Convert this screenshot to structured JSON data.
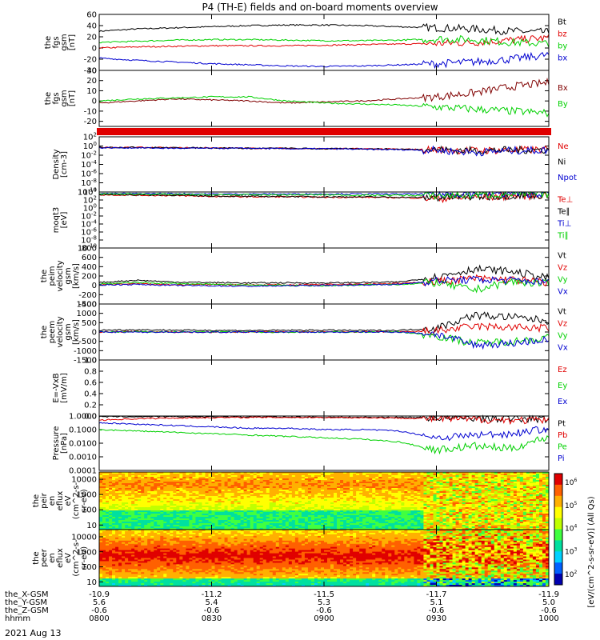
{
  "title": "P4 (TH-E) fields and on-board moments overview",
  "date_label": "2021 Aug 13",
  "colors": {
    "black": "#000000",
    "red": "#e00000",
    "green": "#00d000",
    "blue": "#0000d0"
  },
  "x_axis": {
    "row_labels": [
      "the_X-GSM",
      "the_Y-GSM",
      "the_Z-GSM",
      "hhmm"
    ],
    "columns": [
      {
        "values": [
          "-10.9",
          "5.6",
          "-0.6",
          "0800"
        ]
      },
      {
        "values": [
          "-11.2",
          "5.4",
          "-0.6",
          "0830"
        ]
      },
      {
        "values": [
          "-11.5",
          "5.3",
          "-0.6",
          "0900"
        ]
      },
      {
        "values": [
          "-11.7",
          "5.1",
          "-0.6",
          "0930"
        ]
      },
      {
        "values": [
          "-11.9",
          "5.0",
          "-0.6",
          "1000"
        ]
      }
    ]
  },
  "colorbar": {
    "label": "[eV/(cm^2-s-sr-eV)] (All Qs)",
    "ticks": [
      "10^6",
      "10^5",
      "10^4",
      "10^3",
      "10^2"
    ]
  },
  "chart_data": [
    {
      "type": "line",
      "ylabel": [
        "the",
        "fgs",
        "gsm",
        "[nT]"
      ],
      "yticks": [
        "60",
        "40",
        "20",
        "0",
        "-20",
        "-40"
      ],
      "ylim": [
        -40,
        60
      ],
      "series": [
        {
          "name": "Bt",
          "color": "#000000",
          "values": [
            30,
            34,
            36,
            38,
            40,
            41,
            41,
            40,
            38,
            36,
            34,
            30,
            28
          ]
        },
        {
          "name": "bz",
          "color": "#e00000",
          "values": [
            0,
            2,
            3,
            4,
            4,
            4,
            5,
            6,
            7,
            8,
            10,
            14,
            18
          ]
        },
        {
          "name": "by",
          "color": "#00d000",
          "values": [
            10,
            12,
            14,
            15,
            15,
            14,
            13,
            13,
            14,
            16,
            15,
            10,
            8
          ]
        },
        {
          "name": "bx",
          "color": "#0000d0",
          "values": [
            -18,
            -22,
            -25,
            -28,
            -30,
            -32,
            -33,
            -32,
            -30,
            -28,
            -25,
            -20,
            -12
          ]
        }
      ]
    },
    {
      "type": "line",
      "ylabel": [
        "the",
        "fgs",
        "gsm",
        "[nT]"
      ],
      "yticks": [
        "30",
        "20",
        "10",
        "0",
        "-10",
        "-20"
      ],
      "ylim": [
        -25,
        30
      ],
      "series": [
        {
          "name": "Bx",
          "color": "#800000",
          "values": [
            -2,
            0,
            2,
            1,
            0,
            -2,
            -1,
            0,
            2,
            4,
            8,
            14,
            18
          ]
        },
        {
          "name": "By",
          "color": "#00d000",
          "values": [
            0,
            2,
            3,
            4,
            4,
            0,
            -2,
            -3,
            -4,
            -6,
            -8,
            -10,
            -12
          ]
        }
      ]
    },
    {
      "type": "bar",
      "series": [
        {
          "name": "",
          "color": "#e00000",
          "values": [
            1,
            1,
            1,
            1,
            1,
            1,
            1,
            1,
            1,
            1,
            1,
            1,
            1
          ]
        }
      ]
    },
    {
      "type": "line",
      "scale": "log",
      "ylabel": [
        "Density",
        "[cm-3]"
      ],
      "yticks": [
        "10^2",
        "10^0",
        "10^-2",
        "10^-4",
        "10^-6",
        "10^-8",
        "10^-10"
      ],
      "ylim": [
        -10,
        2
      ],
      "series": [
        {
          "name": "Ne",
          "color": "#e00000",
          "values": [
            -0.3,
            -0.3,
            -0.4,
            -0.4,
            -0.5,
            -0.5,
            -0.6,
            -0.6,
            -0.7,
            -0.8,
            -1.0,
            -0.9,
            -0.8
          ]
        },
        {
          "name": "Ni",
          "color": "#000000",
          "values": [
            -0.3,
            -0.3,
            -0.4,
            -0.4,
            -0.5,
            -0.5,
            -0.6,
            -0.6,
            -0.7,
            -0.8,
            -1.0,
            -0.9,
            -0.8
          ]
        },
        {
          "name": "Npot",
          "color": "#0000d0",
          "values": [
            -0.4,
            -0.4,
            -0.5,
            -0.5,
            -0.5,
            -0.6,
            -0.6,
            -0.7,
            -0.8,
            -0.9,
            -1.4,
            -1.0,
            -0.9
          ]
        }
      ]
    },
    {
      "type": "line",
      "scale": "log",
      "ylabel": [
        "moqt3",
        "[eV]"
      ],
      "yticks": [
        "10^4",
        "10^2",
        "10^0",
        "10^-2",
        "10^-4",
        "10^-6",
        "10^-8",
        "10^-10"
      ],
      "ylim": [
        -10,
        4
      ],
      "series": [
        {
          "name": "Te⊥",
          "color": "#e00000",
          "values": [
            3.3,
            3.2,
            3.1,
            2.9,
            2.8,
            2.8,
            2.7,
            2.7,
            2.6,
            2.4,
            2.6,
            3.0,
            3.2
          ]
        },
        {
          "name": "Te∥",
          "color": "#000000",
          "values": [
            3.4,
            3.3,
            3.2,
            3.0,
            2.9,
            2.9,
            2.8,
            2.8,
            2.7,
            2.6,
            2.8,
            3.1,
            3.3
          ]
        },
        {
          "name": "Ti⊥",
          "color": "#0000d0",
          "values": [
            3.6,
            3.6,
            3.6,
            3.5,
            3.5,
            3.5,
            3.5,
            3.5,
            3.5,
            3.5,
            3.6,
            3.6,
            3.7
          ]
        },
        {
          "name": "Ti∥",
          "color": "#00d000",
          "values": [
            3.5,
            3.5,
            3.4,
            3.3,
            3.3,
            3.3,
            3.3,
            3.2,
            3.2,
            3.1,
            3.3,
            3.5,
            3.6
          ]
        }
      ]
    },
    {
      "type": "line",
      "ylabel": [
        "the",
        "peim",
        "velocity",
        "gsm",
        "[km/s]"
      ],
      "yticks": [
        "800",
        "600",
        "400",
        "200",
        "0",
        "-200",
        "-400"
      ],
      "ylim": [
        -400,
        800
      ],
      "series": [
        {
          "name": "Vt",
          "color": "#000000",
          "values": [
            60,
            110,
            70,
            60,
            50,
            55,
            50,
            60,
            70,
            180,
            350,
            300,
            150
          ]
        },
        {
          "name": "Vz",
          "color": "#e00000",
          "values": [
            20,
            30,
            10,
            20,
            10,
            10,
            20,
            30,
            40,
            80,
            150,
            120,
            60
          ]
        },
        {
          "name": "Vy",
          "color": "#00d000",
          "values": [
            30,
            60,
            40,
            20,
            10,
            0,
            -10,
            10,
            20,
            60,
            -100,
            80,
            30
          ]
        },
        {
          "name": "Vx",
          "color": "#0000d0",
          "values": [
            10,
            20,
            0,
            -10,
            -20,
            -10,
            0,
            10,
            20,
            100,
            120,
            110,
            60
          ]
        }
      ]
    },
    {
      "type": "line",
      "ylabel": [
        "the",
        "peem",
        "velocity",
        "gsm",
        "[km/s]"
      ],
      "yticks": [
        "1500",
        "1000",
        "500",
        "0",
        "-500",
        "-1000",
        "-1500"
      ],
      "ylim": [
        -1500,
        1500
      ],
      "series": [
        {
          "name": "Vt",
          "color": "#000000",
          "values": [
            100,
            120,
            100,
            90,
            80,
            90,
            100,
            80,
            90,
            200,
            900,
            800,
            600
          ]
        },
        {
          "name": "Vz",
          "color": "#e00000",
          "values": [
            0,
            20,
            0,
            -10,
            0,
            10,
            0,
            10,
            0,
            50,
            300,
            250,
            200
          ]
        },
        {
          "name": "Vy",
          "color": "#00d000",
          "values": [
            0,
            10,
            0,
            10,
            0,
            -10,
            0,
            0,
            10,
            -200,
            -600,
            -500,
            -300
          ]
        },
        {
          "name": "Vx",
          "color": "#0000d0",
          "values": [
            0,
            -10,
            0,
            -10,
            0,
            0,
            -10,
            0,
            0,
            -100,
            -700,
            -600,
            -400
          ]
        }
      ]
    },
    {
      "type": "line",
      "ylabel": [
        "E=-VxB",
        "[mV/m]"
      ],
      "yticks": [
        "1.0",
        "0.8",
        "0.6",
        "0.4",
        "0.2",
        "0.0"
      ],
      "ylim": [
        0,
        1
      ],
      "series": [
        {
          "name": "Ez",
          "color": "#e00000",
          "values": []
        },
        {
          "name": "Ey",
          "color": "#00d000",
          "values": []
        },
        {
          "name": "Ex",
          "color": "#0000d0",
          "values": []
        }
      ]
    },
    {
      "type": "line",
      "scale": "log",
      "ylabel": [
        "Pressure",
        "[nPa]"
      ],
      "yticks": [
        "1.0000",
        "0.1000",
        "0.0100",
        "0.0010",
        "0.0001"
      ],
      "ylim": [
        -4,
        0
      ],
      "series": [
        {
          "name": "Pt",
          "color": "#000000",
          "values": [
            -0.05,
            -0.05,
            -0.05,
            -0.06,
            -0.07,
            -0.08,
            -0.09,
            -0.1,
            -0.1,
            -0.12,
            -0.15,
            -0.18,
            -0.25
          ]
        },
        {
          "name": "Pb",
          "color": "#e00000",
          "values": [
            -0.3,
            -0.2,
            -0.15,
            -0.12,
            -0.1,
            -0.1,
            -0.1,
            -0.12,
            -0.15,
            -0.2,
            -0.25,
            -0.3,
            -0.35
          ]
        },
        {
          "name": "Pe",
          "color": "#00d000",
          "values": [
            -1.0,
            -1.1,
            -1.2,
            -1.3,
            -1.4,
            -1.5,
            -1.6,
            -1.7,
            -1.9,
            -2.5,
            -2.2,
            -2.4,
            -1.5
          ]
        },
        {
          "name": "Pi",
          "color": "#0000d0",
          "values": [
            -0.5,
            -0.6,
            -0.7,
            -0.8,
            -0.9,
            -0.9,
            -1.0,
            -1.0,
            -1.1,
            -1.6,
            -1.4,
            -1.3,
            -0.9
          ]
        }
      ]
    },
    {
      "type": "heatmap",
      "ylabel": [
        "the",
        "peir",
        "en",
        "eflux",
        "eV",
        "(cm^2-s-",
        "sr-eV)"
      ],
      "yticks": [
        "10000",
        "1000",
        "100",
        "10"
      ],
      "ylim": [
        5,
        30000
      ]
    },
    {
      "type": "heatmap",
      "ylabel": [
        "the",
        "peer",
        "en",
        "eflux",
        "eV",
        "(cm^2-s-",
        "sr-eV)"
      ],
      "yticks": [
        "10000",
        "1000",
        "100",
        "10"
      ],
      "ylim": [
        5,
        30000
      ]
    }
  ]
}
